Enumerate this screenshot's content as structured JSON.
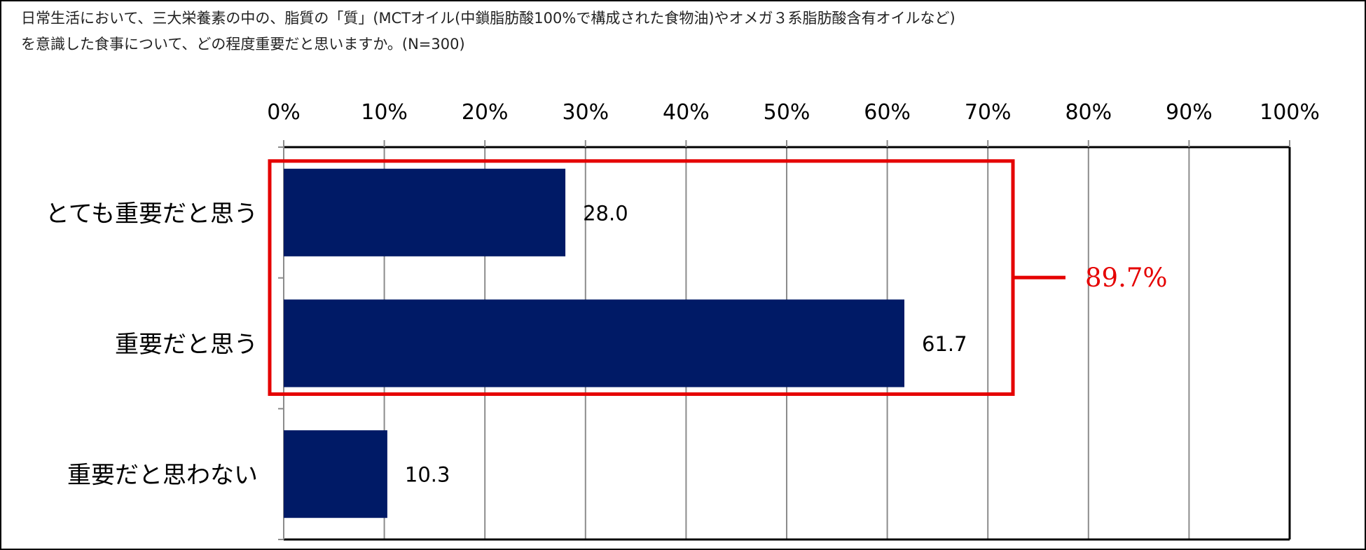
{
  "question": {
    "line1": "日常生活において、三大栄養素の中の、脂質の「質」(MCTオイル(中鎖脂肪酸100%で構成された食物油)やオメガ３系脂肪酸含有オイルなど)",
    "line2": "を意識した食事について、どの程度重要だと思いますか。(N=300)"
  },
  "chart_data": {
    "type": "bar",
    "orientation": "horizontal",
    "categories": [
      "とても重要だと思う",
      "重要だと思う",
      "重要だと思わない"
    ],
    "values": [
      28.0,
      61.7,
      10.3
    ],
    "value_labels": [
      "28.0",
      "61.7",
      "10.3"
    ],
    "xlim": [
      0,
      100
    ],
    "xticks": [
      "0%",
      "10%",
      "20%",
      "30%",
      "40%",
      "50%",
      "60%",
      "70%",
      "80%",
      "90%",
      "100%"
    ],
    "axis_position": "top",
    "grid": true,
    "bar_color": "#001A66",
    "annotation": {
      "label": "89.7%",
      "color": "#E50000",
      "groups": [
        "とても重要だと思う",
        "重要だと思う"
      ]
    }
  }
}
